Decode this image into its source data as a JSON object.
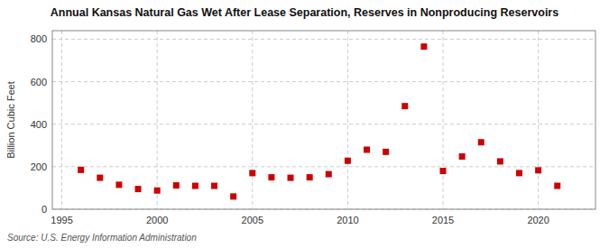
{
  "chart_data": {
    "type": "scatter",
    "title": "Annual Kansas Natural Gas Wet After Lease Separation, Reserves in Nonproducing Reservoirs",
    "ylabel": "Billion Cubic Feet",
    "source": "Source: U.S. Energy Information Administration",
    "x": [
      1996,
      1997,
      1998,
      1999,
      2000,
      2001,
      2002,
      2003,
      2004,
      2005,
      2006,
      2007,
      2008,
      2009,
      2010,
      2011,
      2012,
      2013,
      2014,
      2015,
      2016,
      2017,
      2018,
      2019,
      2020,
      2021
    ],
    "values": [
      185,
      148,
      115,
      95,
      88,
      112,
      110,
      110,
      60,
      170,
      150,
      148,
      150,
      165,
      228,
      280,
      270,
      485,
      765,
      180,
      248,
      315,
      225,
      170,
      183,
      110
    ],
    "xlim": [
      1994.5,
      2023
    ],
    "xticks": [
      1995,
      2000,
      2005,
      2010,
      2015,
      2020
    ],
    "ylim": [
      0,
      840
    ],
    "yticks": [
      0,
      200,
      400,
      600,
      800
    ],
    "grid": true,
    "color": "#cc0000",
    "marker": "square"
  }
}
